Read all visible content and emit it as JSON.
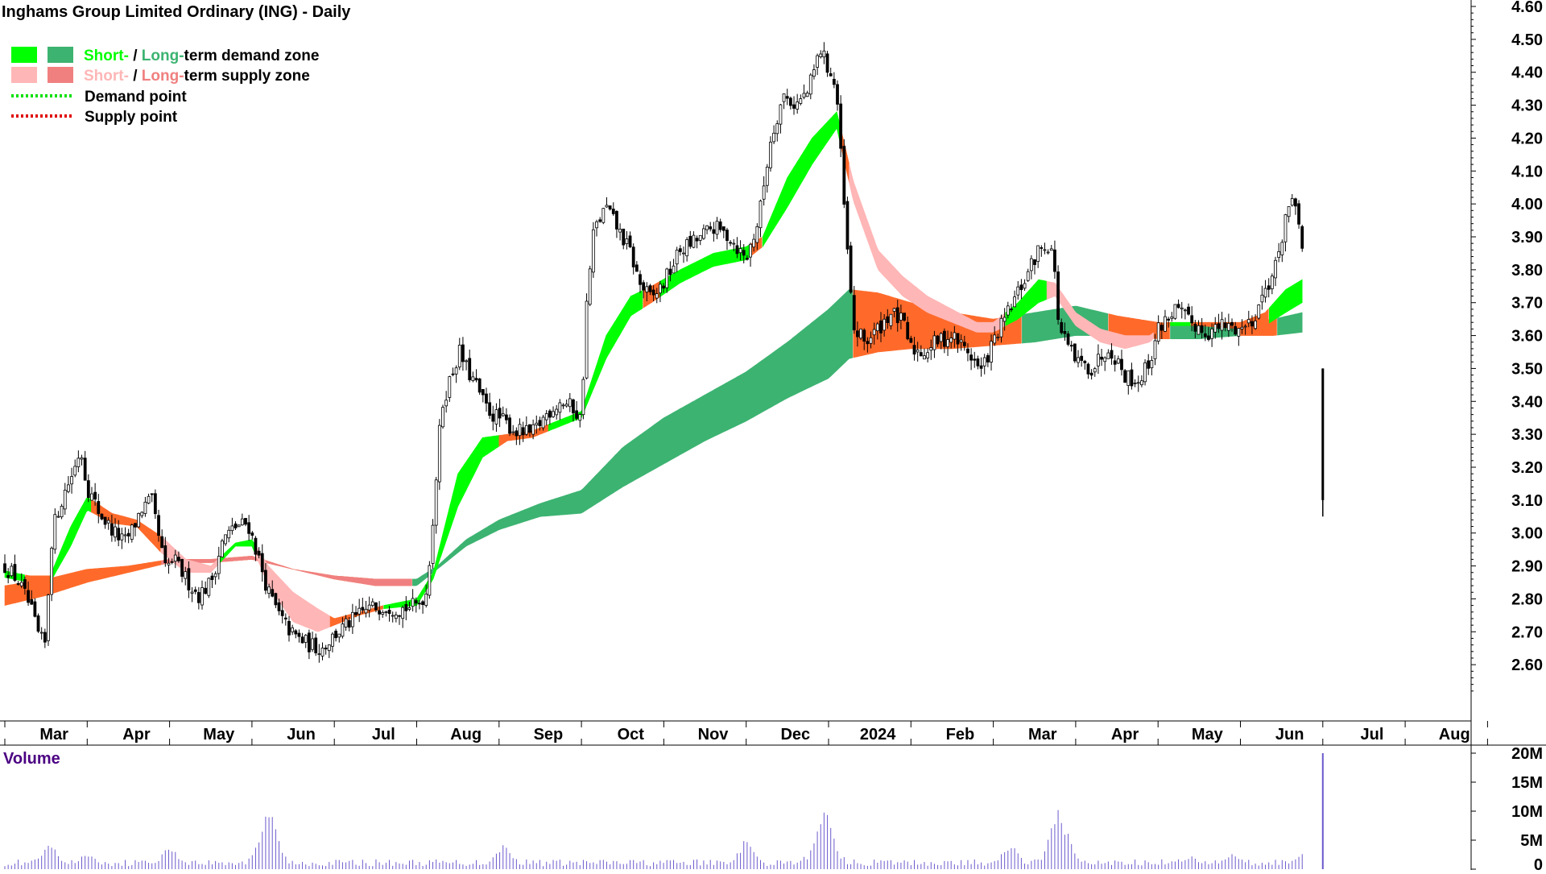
{
  "chart_data": {
    "type": "candlestick",
    "title": "Inghams Group Limited Ordinary (ING) - Daily",
    "legend": {
      "placement": "top-left",
      "entries": [
        {
          "parts": [
            "Short-",
            " / ",
            "Long-",
            "term demand zone"
          ],
          "swatches": [
            "#00ff00",
            "#3cb371"
          ]
        },
        {
          "parts": [
            "Short-",
            " / ",
            "Long-",
            "term supply zone"
          ],
          "swatches": [
            "#ffb6b6",
            "#f08080"
          ]
        },
        {
          "label": "Demand point",
          "style": "dotted",
          "color": "#00e000"
        },
        {
          "label": "Supply point",
          "style": "dotted",
          "color": "#e00000"
        }
      ]
    },
    "colors": {
      "short_demand": "#00ff00",
      "long_demand": "#3cb371",
      "short_supply": "#ffb6b6",
      "long_supply": "#f08080",
      "neutral": "#ff6a2a",
      "candle": "#000000",
      "volume": "#6a5acd"
    },
    "price_axis": {
      "ylim": [
        2.5,
        4.6
      ],
      "ticks": [
        "4.60",
        "4.50",
        "4.40",
        "4.30",
        "4.20",
        "4.10",
        "4.00",
        "3.90",
        "3.80",
        "3.70",
        "3.60",
        "3.50",
        "3.40",
        "3.30",
        "3.20",
        "3.10",
        "3.00",
        "2.90",
        "2.80",
        "2.70",
        "2.60"
      ],
      "position": "right",
      "grid": false
    },
    "x_axis": {
      "labels": [
        "Mar",
        "Apr",
        "May",
        "Jun",
        "Jul",
        "Aug",
        "Sep",
        "Oct",
        "Nov",
        "Dec",
        "2024",
        "Feb",
        "Mar",
        "Apr",
        "May",
        "Jun",
        "Jul",
        "Aug"
      ],
      "label_month_index": [
        1,
        2,
        3,
        4,
        5,
        6,
        7,
        8,
        9,
        10,
        11,
        12,
        13,
        14,
        15,
        16,
        17,
        18
      ]
    },
    "volume_axis": {
      "label": "Volume",
      "ylim": [
        0,
        20000000
      ],
      "ticks": [
        "20M",
        "15M",
        "10M",
        "5M",
        "0"
      ]
    },
    "price_path": [
      [
        0.0,
        2.9
      ],
      [
        0.15,
        2.86
      ],
      [
        0.3,
        2.78
      ],
      [
        0.42,
        2.68
      ],
      [
        0.5,
        2.66
      ],
      [
        0.55,
        2.95
      ],
      [
        0.62,
        3.05
      ],
      [
        0.72,
        3.12
      ],
      [
        0.85,
        3.2
      ],
      [
        0.92,
        3.26
      ],
      [
        1.0,
        3.14
      ],
      [
        1.15,
        3.06
      ],
      [
        1.3,
        3.01
      ],
      [
        1.45,
        2.97
      ],
      [
        1.55,
        3.01
      ],
      [
        1.65,
        3.07
      ],
      [
        1.78,
        3.1
      ],
      [
        1.85,
        3.01
      ],
      [
        1.95,
        2.89
      ],
      [
        2.05,
        2.92
      ],
      [
        2.2,
        2.86
      ],
      [
        2.35,
        2.81
      ],
      [
        2.5,
        2.85
      ],
      [
        2.65,
        2.98
      ],
      [
        2.8,
        3.02
      ],
      [
        2.95,
        3.03
      ],
      [
        3.05,
        2.95
      ],
      [
        3.2,
        2.82
      ],
      [
        3.35,
        2.74
      ],
      [
        3.5,
        2.69
      ],
      [
        3.7,
        2.66
      ],
      [
        3.85,
        2.65
      ],
      [
        4.0,
        2.69
      ],
      [
        4.2,
        2.73
      ],
      [
        4.4,
        2.77
      ],
      [
        4.6,
        2.78
      ],
      [
        4.8,
        2.77
      ],
      [
        5.0,
        2.78
      ],
      [
        5.12,
        2.82
      ],
      [
        5.2,
        3.05
      ],
      [
        5.3,
        3.38
      ],
      [
        5.42,
        3.48
      ],
      [
        5.52,
        3.55
      ],
      [
        5.62,
        3.49
      ],
      [
        5.72,
        3.45
      ],
      [
        5.82,
        3.39
      ],
      [
        5.92,
        3.36
      ],
      [
        6.0,
        3.35
      ],
      [
        6.2,
        3.31
      ],
      [
        6.4,
        3.3
      ],
      [
        6.6,
        3.37
      ],
      [
        6.75,
        3.4
      ],
      [
        6.9,
        3.38
      ],
      [
        7.0,
        3.34
      ],
      [
        7.05,
        3.66
      ],
      [
        7.15,
        3.92
      ],
      [
        7.3,
        3.99
      ],
      [
        7.45,
        3.92
      ],
      [
        7.6,
        3.85
      ],
      [
        7.7,
        3.76
      ],
      [
        7.85,
        3.71
      ],
      [
        8.0,
        3.76
      ],
      [
        8.2,
        3.86
      ],
      [
        8.4,
        3.89
      ],
      [
        8.6,
        3.93
      ],
      [
        8.8,
        3.9
      ],
      [
        9.0,
        3.83
      ],
      [
        9.15,
        3.95
      ],
      [
        9.3,
        4.2
      ],
      [
        9.45,
        4.33
      ],
      [
        9.6,
        4.3
      ],
      [
        9.75,
        4.34
      ],
      [
        9.9,
        4.47
      ],
      [
        10.05,
        4.38
      ],
      [
        10.1,
        4.33
      ],
      [
        10.2,
        3.95
      ],
      [
        10.3,
        3.62
      ],
      [
        10.45,
        3.58
      ],
      [
        10.6,
        3.62
      ],
      [
        10.75,
        3.67
      ],
      [
        10.9,
        3.64
      ],
      [
        11.0,
        3.56
      ],
      [
        11.15,
        3.55
      ],
      [
        11.3,
        3.58
      ],
      [
        11.5,
        3.6
      ],
      [
        11.7,
        3.55
      ],
      [
        11.85,
        3.49
      ],
      [
        12.0,
        3.58
      ],
      [
        12.2,
        3.68
      ],
      [
        12.4,
        3.78
      ],
      [
        12.55,
        3.86
      ],
      [
        12.65,
        3.88
      ],
      [
        12.72,
        3.86
      ],
      [
        12.8,
        3.62
      ],
      [
        13.0,
        3.52
      ],
      [
        13.2,
        3.5
      ],
      [
        13.4,
        3.57
      ],
      [
        13.6,
        3.48
      ],
      [
        13.75,
        3.46
      ],
      [
        13.9,
        3.52
      ],
      [
        14.0,
        3.62
      ],
      [
        14.2,
        3.68
      ],
      [
        14.4,
        3.64
      ],
      [
        14.6,
        3.61
      ],
      [
        14.8,
        3.63
      ],
      [
        15.0,
        3.62
      ],
      [
        15.15,
        3.65
      ],
      [
        15.3,
        3.74
      ],
      [
        15.45,
        3.82
      ],
      [
        15.55,
        3.97
      ],
      [
        15.62,
        4.0
      ],
      [
        15.7,
        3.95
      ],
      [
        15.75,
        3.88
      ]
    ],
    "final_bar": {
      "open": 3.5,
      "high": 3.5,
      "low": 3.05,
      "close": 3.1
    },
    "bands": [
      {
        "name": "short-term",
        "points": [
          [
            0.0,
            2.885,
            2.865
          ],
          [
            0.3,
            2.87,
            2.85
          ],
          [
            0.55,
            2.87,
            2.85
          ],
          [
            0.8,
            3.02,
            2.96
          ],
          [
            1.0,
            3.11,
            3.07
          ],
          [
            1.3,
            3.06,
            3.03
          ],
          [
            1.6,
            3.04,
            3.02
          ],
          [
            1.9,
            2.99,
            2.94
          ],
          [
            2.2,
            2.92,
            2.88
          ],
          [
            2.5,
            2.9,
            2.88
          ],
          [
            2.8,
            2.97,
            2.96
          ],
          [
            3.0,
            2.98,
            2.96
          ],
          [
            3.2,
            2.9,
            2.84
          ],
          [
            3.5,
            2.82,
            2.73
          ],
          [
            3.8,
            2.77,
            2.7
          ],
          [
            4.0,
            2.74,
            2.72
          ],
          [
            4.3,
            2.76,
            2.75
          ],
          [
            4.6,
            2.78,
            2.77
          ],
          [
            5.0,
            2.8,
            2.78
          ],
          [
            5.2,
            2.88,
            2.86
          ],
          [
            5.5,
            3.18,
            3.08
          ],
          [
            5.8,
            3.29,
            3.23
          ],
          [
            6.1,
            3.3,
            3.28
          ],
          [
            6.4,
            3.31,
            3.29
          ],
          [
            6.8,
            3.35,
            3.33
          ],
          [
            7.0,
            3.37,
            3.35
          ],
          [
            7.3,
            3.6,
            3.53
          ],
          [
            7.6,
            3.72,
            3.66
          ],
          [
            7.85,
            3.75,
            3.7
          ],
          [
            8.2,
            3.8,
            3.76
          ],
          [
            8.6,
            3.85,
            3.81
          ],
          [
            9.0,
            3.87,
            3.83
          ],
          [
            9.2,
            3.9,
            3.87
          ],
          [
            9.5,
            4.08,
            3.99
          ],
          [
            9.8,
            4.2,
            4.12
          ],
          [
            10.1,
            4.28,
            4.23
          ],
          [
            10.3,
            4.07,
            4.01
          ],
          [
            10.6,
            3.86,
            3.8
          ],
          [
            10.9,
            3.78,
            3.72
          ],
          [
            11.2,
            3.72,
            3.67
          ],
          [
            11.5,
            3.68,
            3.64
          ],
          [
            11.8,
            3.64,
            3.61
          ],
          [
            12.0,
            3.64,
            3.61
          ],
          [
            12.3,
            3.7,
            3.65
          ],
          [
            12.55,
            3.77,
            3.7
          ],
          [
            12.75,
            3.76,
            3.72
          ],
          [
            13.0,
            3.67,
            3.63
          ],
          [
            13.3,
            3.62,
            3.58
          ],
          [
            13.6,
            3.6,
            3.56
          ],
          [
            13.9,
            3.6,
            3.58
          ],
          [
            14.1,
            3.64,
            3.63
          ],
          [
            14.5,
            3.64,
            3.63
          ],
          [
            15.0,
            3.64,
            3.62
          ],
          [
            15.3,
            3.67,
            3.63
          ],
          [
            15.55,
            3.74,
            3.67
          ],
          [
            15.75,
            3.77,
            3.7
          ]
        ]
      },
      {
        "name": "long-term",
        "points": [
          [
            0.0,
            2.84,
            2.78
          ],
          [
            0.5,
            2.86,
            2.81
          ],
          [
            1.0,
            2.89,
            2.85
          ],
          [
            1.5,
            2.9,
            2.88
          ],
          [
            2.0,
            2.92,
            2.91
          ],
          [
            2.5,
            2.92,
            2.91
          ],
          [
            3.0,
            2.93,
            2.92
          ],
          [
            3.5,
            2.89,
            2.89
          ],
          [
            4.0,
            2.87,
            2.86
          ],
          [
            4.5,
            2.86,
            2.84
          ],
          [
            5.0,
            2.86,
            2.84
          ],
          [
            5.25,
            2.9,
            2.89
          ],
          [
            5.6,
            2.98,
            2.96
          ],
          [
            6.0,
            3.04,
            3.01
          ],
          [
            6.5,
            3.09,
            3.05
          ],
          [
            7.0,
            3.13,
            3.06
          ],
          [
            7.5,
            3.26,
            3.14
          ],
          [
            8.0,
            3.35,
            3.21
          ],
          [
            8.5,
            3.42,
            3.28
          ],
          [
            9.0,
            3.49,
            3.34
          ],
          [
            9.5,
            3.58,
            3.41
          ],
          [
            10.0,
            3.68,
            3.47
          ],
          [
            10.25,
            3.74,
            3.53
          ],
          [
            10.6,
            3.73,
            3.55
          ],
          [
            11.0,
            3.7,
            3.56
          ],
          [
            11.5,
            3.67,
            3.56
          ],
          [
            12.0,
            3.65,
            3.57
          ],
          [
            12.5,
            3.67,
            3.58
          ],
          [
            13.0,
            3.69,
            3.6
          ],
          [
            13.5,
            3.66,
            3.6
          ],
          [
            14.0,
            3.64,
            3.59
          ],
          [
            14.5,
            3.63,
            3.59
          ],
          [
            15.0,
            3.64,
            3.6
          ],
          [
            15.4,
            3.65,
            3.6
          ],
          [
            15.75,
            3.67,
            3.61
          ]
        ]
      }
    ],
    "band_coloring": [
      {
        "band": "short-term",
        "from": 0.0,
        "to": 0.25,
        "zone": "short_demand"
      },
      {
        "band": "short-term",
        "from": 0.25,
        "to": 0.55,
        "zone": "neutral"
      },
      {
        "band": "short-term",
        "from": 0.55,
        "to": 1.05,
        "zone": "short_demand"
      },
      {
        "band": "short-term",
        "from": 1.05,
        "to": 1.9,
        "zone": "neutral"
      },
      {
        "band": "short-term",
        "from": 1.9,
        "to": 2.6,
        "zone": "short_supply"
      },
      {
        "band": "short-term",
        "from": 2.6,
        "to": 3.05,
        "zone": "short_demand"
      },
      {
        "band": "short-term",
        "from": 3.05,
        "to": 3.95,
        "zone": "short_supply"
      },
      {
        "band": "short-term",
        "from": 3.95,
        "to": 4.6,
        "zone": "neutral"
      },
      {
        "band": "short-term",
        "from": 4.6,
        "to": 6.0,
        "zone": "short_demand"
      },
      {
        "band": "short-term",
        "from": 6.0,
        "to": 6.6,
        "zone": "neutral"
      },
      {
        "band": "short-term",
        "from": 6.6,
        "to": 7.75,
        "zone": "short_demand"
      },
      {
        "band": "short-term",
        "from": 7.75,
        "to": 7.95,
        "zone": "neutral"
      },
      {
        "band": "short-term",
        "from": 7.95,
        "to": 9.05,
        "zone": "short_demand"
      },
      {
        "band": "short-term",
        "from": 9.05,
        "to": 9.2,
        "zone": "neutral"
      },
      {
        "band": "short-term",
        "from": 9.2,
        "to": 10.15,
        "zone": "short_demand"
      },
      {
        "band": "short-term",
        "from": 10.15,
        "to": 10.25,
        "zone": "neutral"
      },
      {
        "band": "short-term",
        "from": 10.25,
        "to": 12.15,
        "zone": "short_supply"
      },
      {
        "band": "short-term",
        "from": 12.15,
        "to": 12.65,
        "zone": "short_demand"
      },
      {
        "band": "short-term",
        "from": 12.65,
        "to": 13.95,
        "zone": "short_supply"
      },
      {
        "band": "short-term",
        "from": 13.95,
        "to": 14.15,
        "zone": "neutral"
      },
      {
        "band": "short-term",
        "from": 14.15,
        "to": 14.4,
        "zone": "short_demand"
      },
      {
        "band": "short-term",
        "from": 14.4,
        "to": 15.35,
        "zone": "neutral"
      },
      {
        "band": "short-term",
        "from": 15.35,
        "to": 15.75,
        "zone": "short_demand"
      },
      {
        "band": "long-term",
        "from": 0.0,
        "to": 4.95,
        "zone": "neutral"
      },
      {
        "band": "long-term",
        "from": 1.9,
        "to": 4.95,
        "zone": "long_supply"
      },
      {
        "band": "long-term",
        "from": 4.95,
        "to": 10.3,
        "zone": "long_demand"
      },
      {
        "band": "long-term",
        "from": 10.3,
        "to": 12.35,
        "zone": "neutral"
      },
      {
        "band": "long-term",
        "from": 12.35,
        "to": 13.4,
        "zone": "long_demand"
      },
      {
        "band": "long-term",
        "from": 13.4,
        "to": 14.15,
        "zone": "neutral"
      },
      {
        "band": "long-term",
        "from": 14.15,
        "to": 15.0,
        "zone": "long_demand"
      },
      {
        "band": "long-term",
        "from": 15.0,
        "to": 15.45,
        "zone": "neutral"
      },
      {
        "band": "long-term",
        "from": 15.45,
        "to": 15.75,
        "zone": "long_demand"
      }
    ],
    "volume": {
      "baseline_millions": 1.3,
      "spikes": [
        [
          0.55,
          4.5
        ],
        [
          1.0,
          3.0
        ],
        [
          2.0,
          4.2
        ],
        [
          3.2,
          11.5
        ],
        [
          6.05,
          5.0
        ],
        [
          9.0,
          5.5
        ],
        [
          9.95,
          11.0
        ],
        [
          12.2,
          4.8
        ],
        [
          12.8,
          11.5
        ],
        [
          14.4,
          2.5
        ],
        [
          14.9,
          3.5
        ],
        [
          15.75,
          3.0
        ],
        [
          16.0,
          20.0
        ]
      ]
    }
  }
}
